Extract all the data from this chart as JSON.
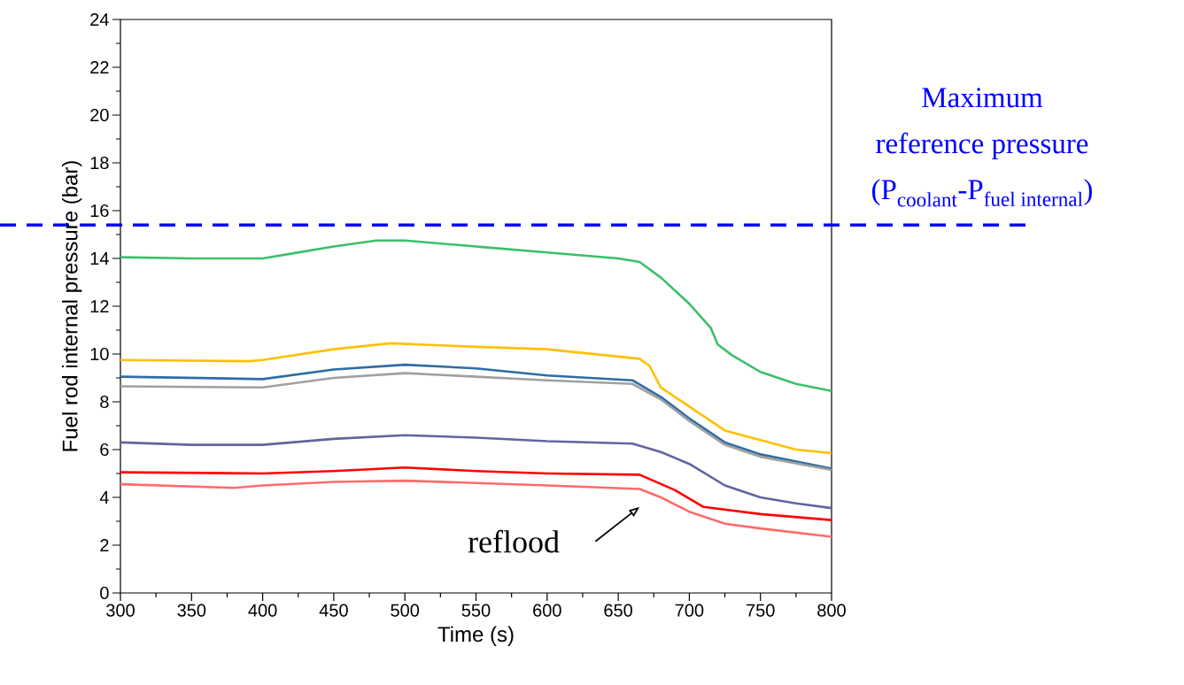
{
  "chart_data": {
    "type": "line",
    "xlabel": "Time (s)",
    "ylabel": "Fuel rod internal pressure (bar)",
    "xlim": [
      300,
      800
    ],
    "ylim": [
      0,
      24
    ],
    "xticks": [
      300,
      350,
      400,
      450,
      500,
      550,
      600,
      650,
      700,
      750,
      800
    ],
    "yticks": [
      0,
      2,
      4,
      6,
      8,
      10,
      12,
      14,
      16,
      18,
      20,
      22,
      24
    ],
    "grid": false,
    "marker": "none",
    "line_style": "solid",
    "series": [
      {
        "color": "#3dbf6b",
        "x": [
          300,
          350,
          400,
          420,
          450,
          480,
          500,
          530,
          560,
          600,
          650,
          665,
          680,
          700,
          715,
          720,
          730,
          750,
          775,
          800
        ],
        "values": [
          14.05,
          14.0,
          14.0,
          14.2,
          14.5,
          14.75,
          14.75,
          14.6,
          14.45,
          14.25,
          14.0,
          13.85,
          13.2,
          12.1,
          11.1,
          10.4,
          9.95,
          9.25,
          8.75,
          8.45
        ]
      },
      {
        "color": "#ffc000",
        "x": [
          300,
          390,
          400,
          450,
          490,
          550,
          600,
          665,
          672,
          680,
          700,
          725,
          750,
          775,
          800
        ],
        "values": [
          9.75,
          9.7,
          9.75,
          10.2,
          10.45,
          10.3,
          10.2,
          9.8,
          9.5,
          8.6,
          7.8,
          6.8,
          6.4,
          6.0,
          5.85
        ]
      },
      {
        "color": "#2e6ca4",
        "x": [
          300,
          400,
          450,
          500,
          550,
          600,
          660,
          680,
          700,
          725,
          750,
          800
        ],
        "values": [
          9.05,
          8.95,
          9.35,
          9.55,
          9.4,
          9.1,
          8.9,
          8.2,
          7.3,
          6.3,
          5.8,
          5.2
        ]
      },
      {
        "color": "#a0a0a0",
        "x": [
          300,
          400,
          450,
          500,
          550,
          600,
          660,
          680,
          700,
          725,
          750,
          800
        ],
        "values": [
          8.65,
          8.6,
          9.0,
          9.2,
          9.05,
          8.9,
          8.75,
          8.1,
          7.2,
          6.2,
          5.7,
          5.15
        ]
      },
      {
        "color": "#6264a0",
        "x": [
          300,
          350,
          400,
          450,
          500,
          550,
          600,
          660,
          680,
          700,
          725,
          750,
          775,
          800
        ],
        "values": [
          6.3,
          6.2,
          6.2,
          6.45,
          6.6,
          6.5,
          6.35,
          6.25,
          5.9,
          5.4,
          4.5,
          4.0,
          3.75,
          3.55
        ]
      },
      {
        "color": "#ff0000",
        "x": [
          300,
          400,
          450,
          500,
          550,
          600,
          665,
          690,
          710,
          750,
          800
        ],
        "values": [
          5.05,
          5.0,
          5.1,
          5.25,
          5.1,
          5.0,
          4.95,
          4.3,
          3.6,
          3.3,
          3.05
        ]
      },
      {
        "color": "#ff6b6b",
        "x": [
          300,
          380,
          400,
          450,
          500,
          550,
          600,
          665,
          680,
          700,
          725,
          750,
          800
        ],
        "values": [
          4.55,
          4.4,
          4.5,
          4.65,
          4.7,
          4.6,
          4.5,
          4.35,
          4.0,
          3.4,
          2.9,
          2.7,
          2.35
        ]
      }
    ],
    "ref_lines": [
      {
        "axis": "y",
        "value": 15.4,
        "label": "\\begin{array}{c}\\text{Maximum}\\\\ \\text{reference pressure}\\\\ \\text{(P}_{\\text{coolant}}\\text{-P}_{\\text{fuel internal}}\\text{)}\\end{array}",
        "color": "#0000ff",
        "line_style": "dashed"
      }
    ],
    "annotations": [
      "reflood"
    ]
  }
}
